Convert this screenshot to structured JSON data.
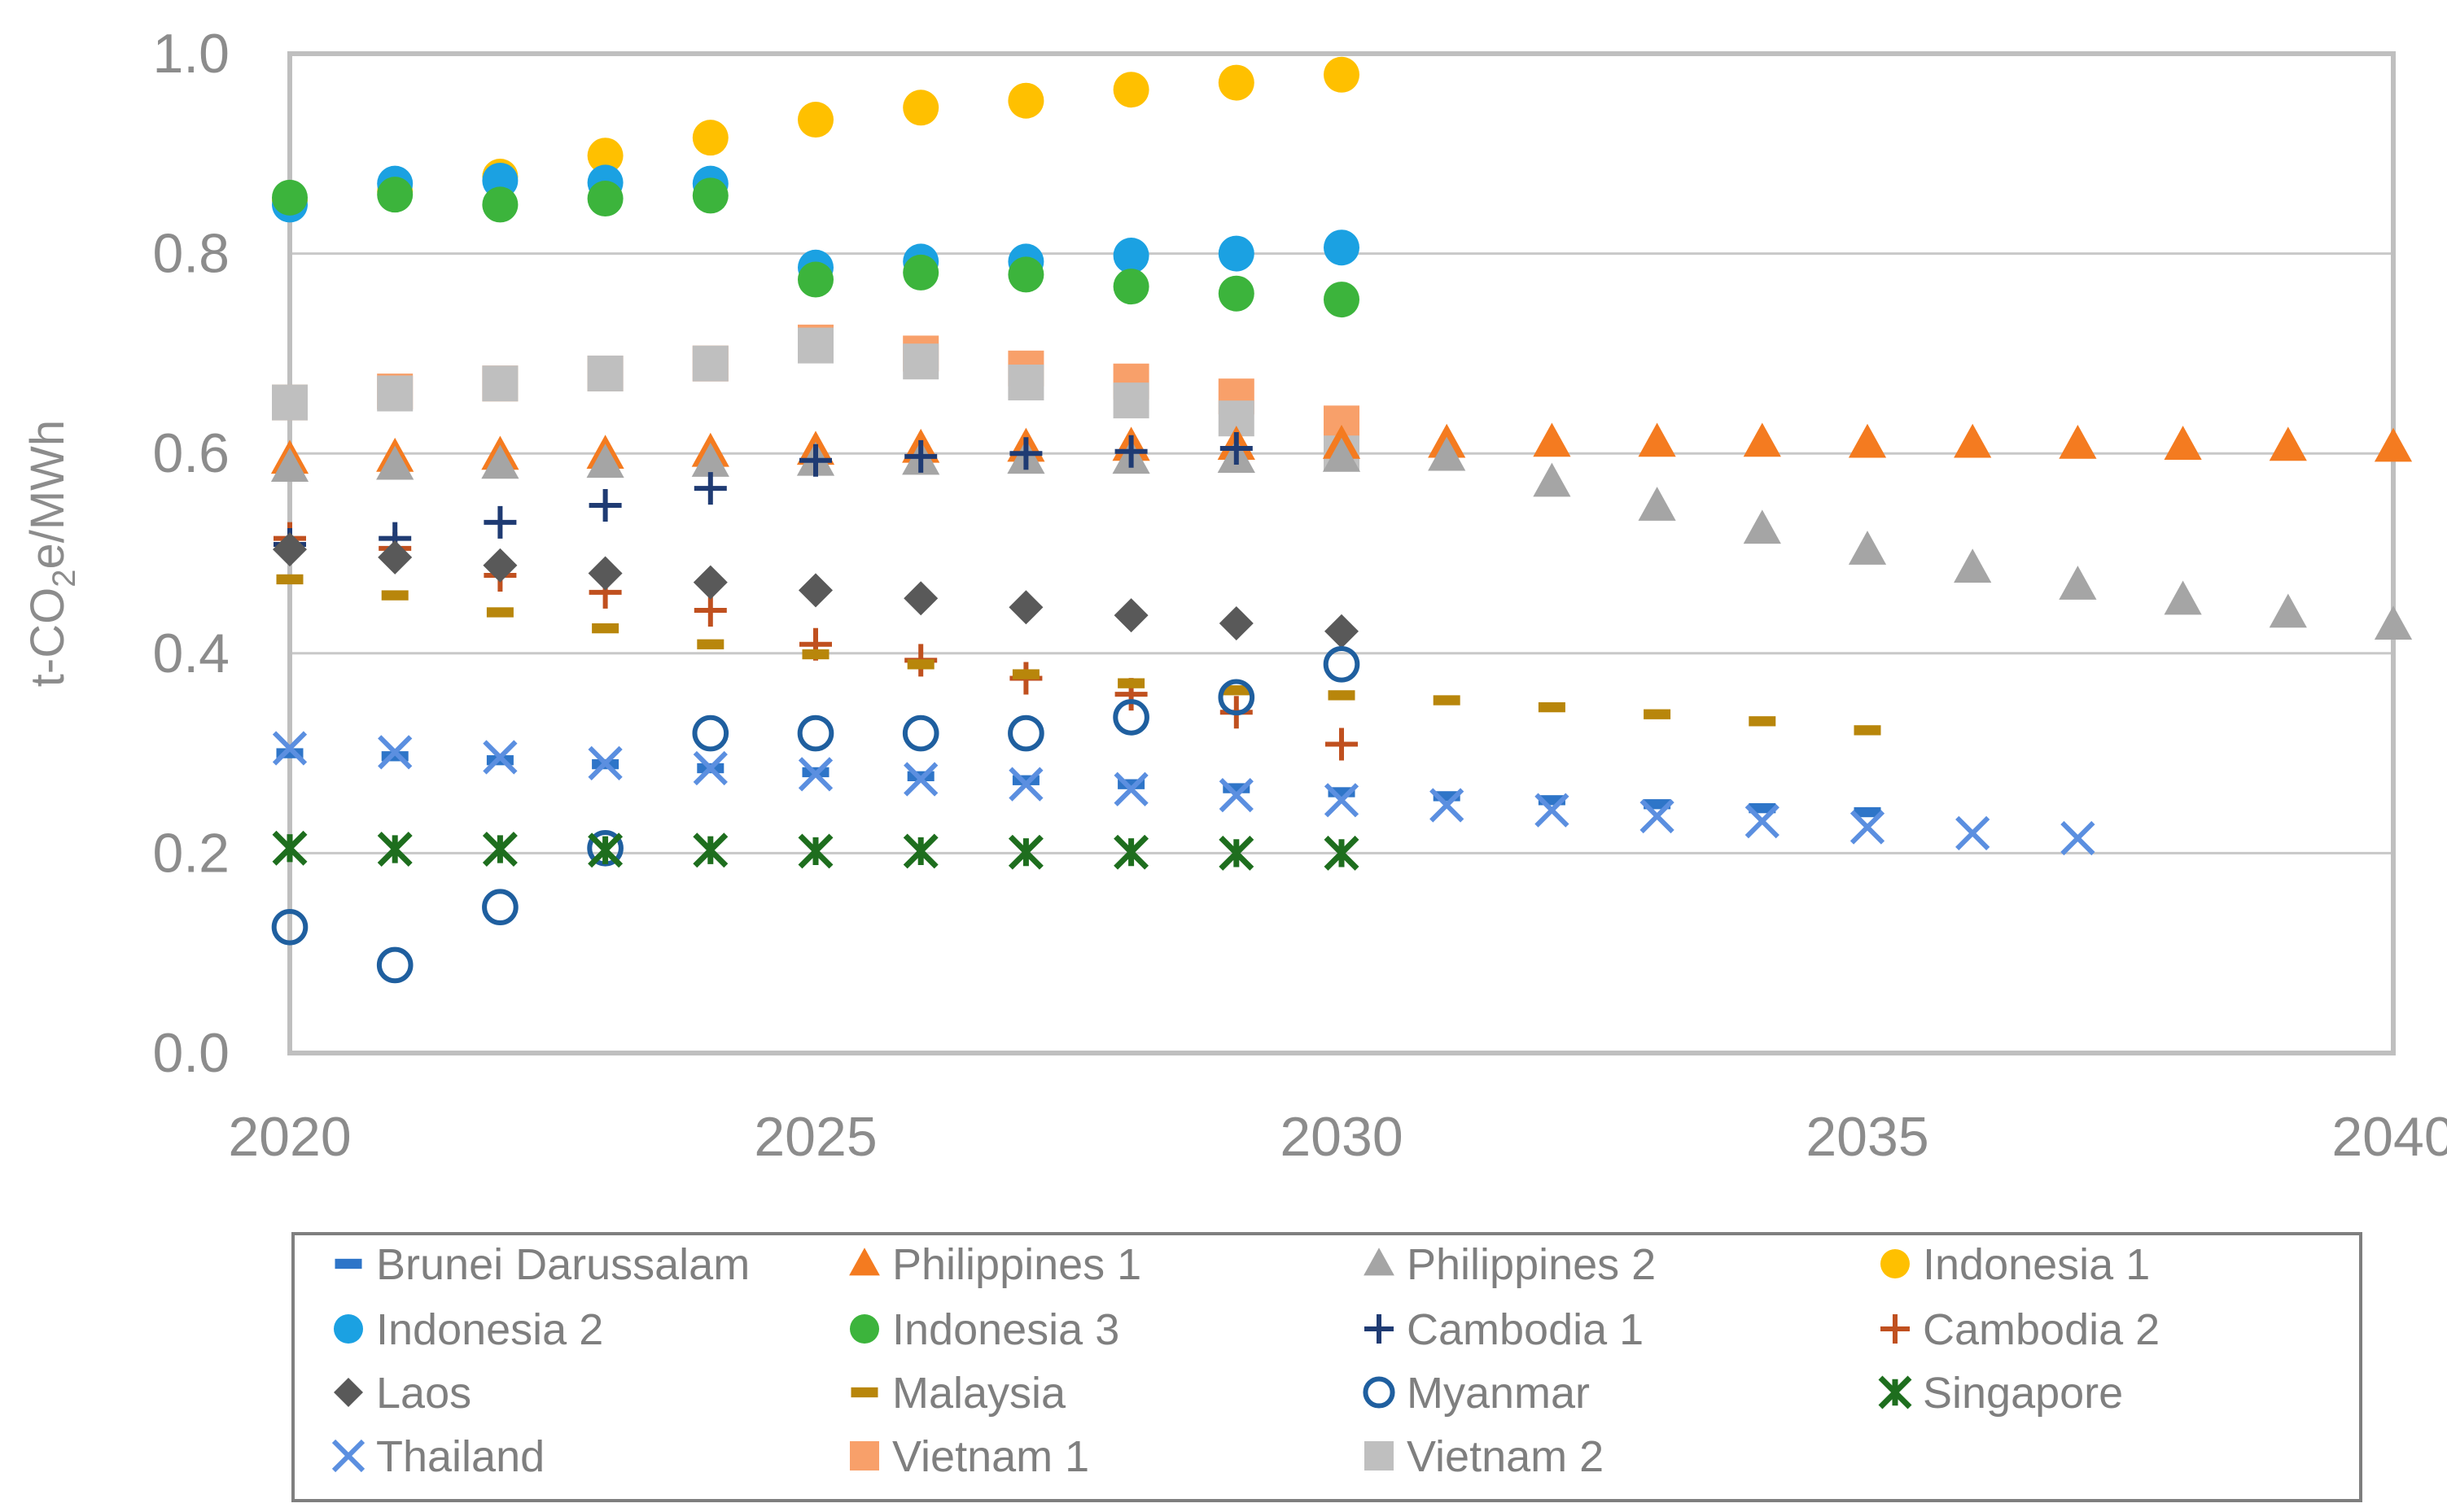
{
  "chart_data": {
    "type": "scatter",
    "title": "",
    "xlabel": "",
    "ylabel": "t-CO₂e/MWh",
    "ylabel_parts": [
      "t-CO",
      "2",
      "e/MWh"
    ],
    "xlim": [
      2020,
      2040
    ],
    "ylim": [
      0,
      1.0
    ],
    "x_ticks": [
      "2020",
      "2025",
      "2030",
      "2035",
      "2040"
    ],
    "x_tick_values": [
      2020,
      2025,
      2030,
      2035,
      2040
    ],
    "y_ticks": [
      "0.0",
      "0.2",
      "0.4",
      "0.6",
      "0.8",
      "1.0"
    ],
    "y_tick_values": [
      0,
      0.2,
      0.4,
      0.6,
      0.8,
      1.0
    ],
    "grid": "horizontal",
    "legend_position": "bottom",
    "series": [
      {
        "name": "Brunei Darussalam",
        "marker": "dash",
        "color": "#2e75c8",
        "x": [
          2020,
          2021,
          2022,
          2023,
          2024,
          2025,
          2026,
          2027,
          2028,
          2029,
          2030,
          2031,
          2032,
          2033,
          2034,
          2035
        ],
        "y": [
          0.3,
          0.297,
          0.293,
          0.289,
          0.285,
          0.281,
          0.277,
          0.273,
          0.269,
          0.265,
          0.261,
          0.257,
          0.253,
          0.249,
          0.245,
          0.241
        ]
      },
      {
        "name": "Philippines 1",
        "marker": "triangle",
        "color": "#f47b20",
        "x": [
          2020,
          2021,
          2022,
          2023,
          2024,
          2025,
          2026,
          2027,
          2028,
          2029,
          2030,
          2031,
          2032,
          2033,
          2034,
          2035,
          2036,
          2037,
          2038,
          2039,
          2040
        ],
        "y": [
          0.594,
          0.596,
          0.598,
          0.599,
          0.601,
          0.603,
          0.605,
          0.606,
          0.607,
          0.608,
          0.609,
          0.61,
          0.611,
          0.611,
          0.611,
          0.61,
          0.61,
          0.609,
          0.608,
          0.607,
          0.606
        ]
      },
      {
        "name": "Philippines 2",
        "marker": "triangle",
        "color": "#a5a5a5",
        "x": [
          2020,
          2021,
          2022,
          2023,
          2024,
          2025,
          2026,
          2027,
          2028,
          2029,
          2030,
          2031,
          2032,
          2033,
          2034,
          2035,
          2036,
          2037,
          2038,
          2039,
          2040
        ],
        "y": [
          0.586,
          0.588,
          0.589,
          0.59,
          0.591,
          0.592,
          0.593,
          0.594,
          0.594,
          0.595,
          0.596,
          0.597,
          0.571,
          0.547,
          0.524,
          0.503,
          0.485,
          0.468,
          0.453,
          0.44,
          0.428
        ]
      },
      {
        "name": "Indonesia 1",
        "marker": "circle",
        "color": "#ffc000",
        "x": [
          2020,
          2021,
          2022,
          2023,
          2024,
          2025,
          2026,
          2027,
          2028,
          2029,
          2030
        ],
        "y": [
          0.853,
          0.862,
          0.877,
          0.898,
          0.916,
          0.934,
          0.946,
          0.953,
          0.964,
          0.971,
          0.979
        ]
      },
      {
        "name": "Indonesia 2",
        "marker": "circle",
        "color": "#1ba1e2",
        "x": [
          2020,
          2021,
          2022,
          2023,
          2024,
          2025,
          2026,
          2027,
          2028,
          2029,
          2030
        ],
        "y": [
          0.849,
          0.87,
          0.873,
          0.871,
          0.87,
          0.786,
          0.792,
          0.792,
          0.798,
          0.8,
          0.806
        ]
      },
      {
        "name": "Indonesia 3",
        "marker": "circle",
        "color": "#3cb43c",
        "x": [
          2020,
          2021,
          2022,
          2023,
          2024,
          2025,
          2026,
          2027,
          2028,
          2029,
          2030
        ],
        "y": [
          0.856,
          0.859,
          0.849,
          0.855,
          0.858,
          0.774,
          0.781,
          0.779,
          0.767,
          0.76,
          0.754
        ]
      },
      {
        "name": "Cambodia 1",
        "marker": "plus",
        "color": "#1f3b73",
        "x": [
          2020,
          2021,
          2022,
          2023,
          2024,
          2025,
          2026,
          2027,
          2028,
          2029
        ],
        "y": [
          0.509,
          0.515,
          0.531,
          0.548,
          0.565,
          0.593,
          0.597,
          0.6,
          0.602,
          0.605
        ]
      },
      {
        "name": "Cambodia 2",
        "marker": "plus",
        "color": "#c0501f",
        "x": [
          2020,
          2021,
          2022,
          2023,
          2024,
          2025,
          2026,
          2027,
          2028,
          2029,
          2030
        ],
        "y": [
          0.515,
          0.505,
          0.478,
          0.461,
          0.443,
          0.409,
          0.393,
          0.375,
          0.359,
          0.341,
          0.309
        ]
      },
      {
        "name": "Laos",
        "marker": "diamond",
        "color": "#595959",
        "x": [
          2020,
          2021,
          2022,
          2023,
          2024,
          2025,
          2026,
          2027,
          2028,
          2029,
          2030
        ],
        "y": [
          0.504,
          0.496,
          0.488,
          0.48,
          0.471,
          0.463,
          0.455,
          0.446,
          0.438,
          0.43,
          0.422
        ]
      },
      {
        "name": "Malaysia",
        "marker": "dash",
        "color": "#b8860b",
        "x": [
          2020,
          2021,
          2022,
          2023,
          2024,
          2025,
          2026,
          2027,
          2028,
          2029,
          2030,
          2031,
          2032,
          2033,
          2034,
          2035
        ],
        "y": [
          0.474,
          0.458,
          0.441,
          0.425,
          0.409,
          0.399,
          0.389,
          0.379,
          0.37,
          0.363,
          0.358,
          0.353,
          0.346,
          0.339,
          0.332,
          0.323
        ]
      },
      {
        "name": "Myanmar",
        "marker": "open-circle",
        "color": "#1f5f9f",
        "x": [
          2020,
          2021,
          2022,
          2023,
          2024,
          2025,
          2026,
          2027,
          2028,
          2029,
          2030
        ],
        "y": [
          0.126,
          0.088,
          0.146,
          0.205,
          0.32,
          0.32,
          0.32,
          0.32,
          0.336,
          0.356,
          0.389
        ]
      },
      {
        "name": "Singapore",
        "marker": "star-x",
        "color": "#1e6e1e",
        "x": [
          2020,
          2021,
          2022,
          2023,
          2024,
          2025,
          2026,
          2027,
          2028,
          2029,
          2030
        ],
        "y": [
          0.205,
          0.204,
          0.204,
          0.203,
          0.203,
          0.202,
          0.202,
          0.201,
          0.201,
          0.2,
          0.2
        ]
      },
      {
        "name": "Thailand",
        "marker": "x",
        "color": "#5b8fe0",
        "x": [
          2020,
          2021,
          2022,
          2023,
          2024,
          2025,
          2026,
          2027,
          2028,
          2029,
          2030,
          2031,
          2032,
          2033,
          2034,
          2035,
          2036,
          2037
        ],
        "y": [
          0.305,
          0.301,
          0.296,
          0.29,
          0.285,
          0.279,
          0.274,
          0.269,
          0.264,
          0.258,
          0.253,
          0.248,
          0.243,
          0.237,
          0.232,
          0.226,
          0.22,
          0.215
        ]
      },
      {
        "name": "Vietnam 1",
        "marker": "square",
        "color": "#f8a06a",
        "x": [
          2020,
          2021,
          2022,
          2023,
          2024,
          2025,
          2026,
          2027,
          2028,
          2029,
          2030
        ],
        "y": [
          0.651,
          0.662,
          0.67,
          0.68,
          0.69,
          0.711,
          0.7,
          0.685,
          0.672,
          0.657,
          0.63
        ]
      },
      {
        "name": "Vietnam 2",
        "marker": "square",
        "color": "#bfbfbf",
        "x": [
          2020,
          2021,
          2022,
          2023,
          2024,
          2025,
          2026,
          2027,
          2028,
          2029,
          2030
        ],
        "y": [
          0.651,
          0.66,
          0.67,
          0.68,
          0.69,
          0.708,
          0.692,
          0.671,
          0.653,
          0.635,
          0.6
        ]
      }
    ]
  }
}
